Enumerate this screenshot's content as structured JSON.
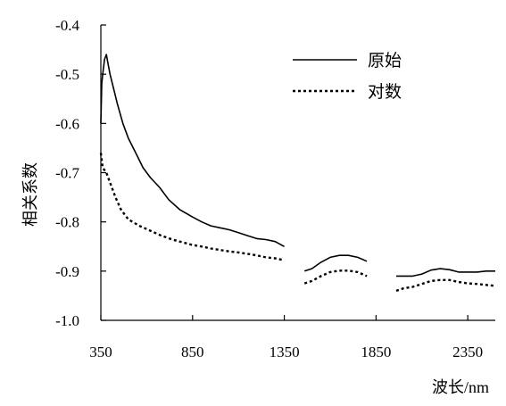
{
  "chart_data": {
    "type": "line",
    "title": "",
    "xlabel": "波长/nm",
    "ylabel": "相关系数",
    "xlim": [
      350,
      2500
    ],
    "ylim": [
      -1.0,
      -0.4
    ],
    "x_ticks": [
      350,
      850,
      1350,
      1850,
      2350
    ],
    "x_tick_labels": [
      "350",
      "850",
      "1350",
      "1850",
      "2350"
    ],
    "y_ticks": [
      -0.4,
      -0.5,
      -0.6,
      -0.7,
      -0.8,
      -0.9,
      -1.0
    ],
    "y_tick_labels": [
      "-0.4",
      "-0.5",
      "-0.6",
      "-0.7",
      "-0.8",
      "-0.9",
      "-1.0"
    ],
    "grid": false,
    "legend_position": "top-right",
    "series": [
      {
        "name": "原始",
        "style": "solid",
        "color": "#000000",
        "segments": [
          [
            [
              350,
              -0.6
            ],
            [
              355,
              -0.52
            ],
            [
              360,
              -0.5
            ],
            [
              370,
              -0.47
            ],
            [
              380,
              -0.46
            ],
            [
              390,
              -0.48
            ],
            [
              400,
              -0.5
            ],
            [
              420,
              -0.53
            ],
            [
              440,
              -0.56
            ],
            [
              470,
              -0.6
            ],
            [
              500,
              -0.63
            ],
            [
              540,
              -0.66
            ],
            [
              580,
              -0.69
            ],
            [
              620,
              -0.71
            ],
            [
              670,
              -0.73
            ],
            [
              720,
              -0.755
            ],
            [
              780,
              -0.775
            ],
            [
              850,
              -0.79
            ],
            [
              900,
              -0.8
            ],
            [
              950,
              -0.808
            ],
            [
              1000,
              -0.812
            ],
            [
              1050,
              -0.816
            ],
            [
              1100,
              -0.822
            ],
            [
              1150,
              -0.828
            ],
            [
              1200,
              -0.834
            ],
            [
              1250,
              -0.836
            ],
            [
              1300,
              -0.84
            ],
            [
              1350,
              -0.85
            ]
          ],
          [
            [
              1460,
              -0.9
            ],
            [
              1500,
              -0.895
            ],
            [
              1550,
              -0.882
            ],
            [
              1600,
              -0.872
            ],
            [
              1650,
              -0.868
            ],
            [
              1700,
              -0.868
            ],
            [
              1750,
              -0.872
            ],
            [
              1800,
              -0.88
            ]
          ],
          [
            [
              1960,
              -0.91
            ],
            [
              2000,
              -0.91
            ],
            [
              2050,
              -0.91
            ],
            [
              2100,
              -0.906
            ],
            [
              2150,
              -0.898
            ],
            [
              2200,
              -0.895
            ],
            [
              2250,
              -0.897
            ],
            [
              2300,
              -0.902
            ],
            [
              2350,
              -0.902
            ],
            [
              2400,
              -0.902
            ],
            [
              2450,
              -0.9
            ],
            [
              2500,
              -0.9
            ]
          ]
        ]
      },
      {
        "name": "对数",
        "style": "dotted",
        "color": "#000000",
        "segments": [
          [
            [
              350,
              -0.66
            ],
            [
              360,
              -0.69
            ],
            [
              370,
              -0.695
            ],
            [
              380,
              -0.7
            ],
            [
              390,
              -0.71
            ],
            [
              410,
              -0.73
            ],
            [
              430,
              -0.75
            ],
            [
              460,
              -0.775
            ],
            [
              500,
              -0.795
            ],
            [
              560,
              -0.808
            ],
            [
              620,
              -0.818
            ],
            [
              680,
              -0.828
            ],
            [
              740,
              -0.836
            ],
            [
              800,
              -0.842
            ],
            [
              850,
              -0.847
            ],
            [
              900,
              -0.85
            ],
            [
              950,
              -0.854
            ],
            [
              1000,
              -0.857
            ],
            [
              1050,
              -0.86
            ],
            [
              1100,
              -0.862
            ],
            [
              1150,
              -0.865
            ],
            [
              1200,
              -0.868
            ],
            [
              1250,
              -0.872
            ],
            [
              1300,
              -0.874
            ],
            [
              1350,
              -0.878
            ]
          ],
          [
            [
              1460,
              -0.925
            ],
            [
              1500,
              -0.92
            ],
            [
              1550,
              -0.91
            ],
            [
              1600,
              -0.902
            ],
            [
              1650,
              -0.899
            ],
            [
              1700,
              -0.899
            ],
            [
              1750,
              -0.902
            ],
            [
              1800,
              -0.91
            ]
          ],
          [
            [
              1960,
              -0.94
            ],
            [
              2000,
              -0.935
            ],
            [
              2050,
              -0.932
            ],
            [
              2100,
              -0.926
            ],
            [
              2150,
              -0.92
            ],
            [
              2200,
              -0.918
            ],
            [
              2250,
              -0.918
            ],
            [
              2300,
              -0.922
            ],
            [
              2350,
              -0.925
            ],
            [
              2400,
              -0.926
            ],
            [
              2450,
              -0.928
            ],
            [
              2500,
              -0.93
            ]
          ]
        ]
      }
    ]
  }
}
